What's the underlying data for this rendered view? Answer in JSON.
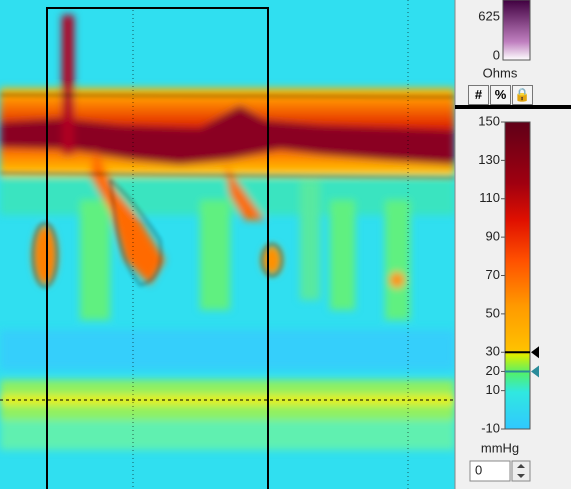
{
  "impedance_scale": {
    "ticks": [
      "625",
      "0"
    ],
    "unit": "Ohms"
  },
  "buttons": [
    "#",
    "%"
  ],
  "pressure_scale": {
    "ylim": [
      -10,
      150
    ],
    "ticks": [
      150,
      130,
      110,
      90,
      70,
      50,
      30,
      20,
      10,
      -10
    ],
    "markers": [
      {
        "value": 30,
        "color": "#000000"
      },
      {
        "value": 20,
        "color": "#2a8c9a"
      }
    ],
    "unit": "mmHg"
  },
  "offset_input": "0"
}
